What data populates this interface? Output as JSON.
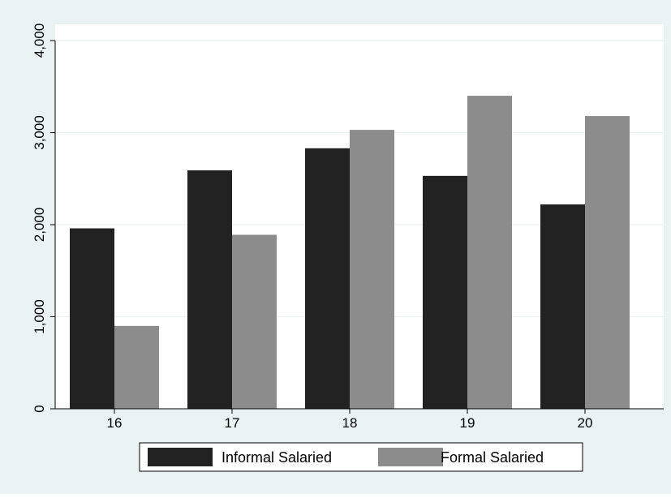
{
  "colors": {
    "outer_background": "#eaf2f3",
    "plot_background": "#ffffff",
    "gridline": "#eaf2f3",
    "axis": "#000000"
  },
  "chart_data": {
    "type": "bar",
    "categories": [
      "16",
      "17",
      "18",
      "19",
      "20"
    ],
    "series": [
      {
        "name": "Informal Salaried",
        "color": "#222222",
        "values": [
          1960,
          2590,
          2830,
          2530,
          2220
        ]
      },
      {
        "name": "Formal Salaried",
        "color": "#8c8c8c",
        "values": [
          900,
          1890,
          3030,
          3400,
          3180
        ]
      }
    ],
    "ylim": [
      0,
      4000
    ],
    "yticks": [
      0,
      1000,
      2000,
      3000,
      4000
    ],
    "ytick_labels": [
      "0",
      "1,000",
      "2,000",
      "3,000",
      "4,000"
    ],
    "grid": true,
    "legend_position": "bottom",
    "title": "",
    "xlabel": "",
    "ylabel": ""
  }
}
